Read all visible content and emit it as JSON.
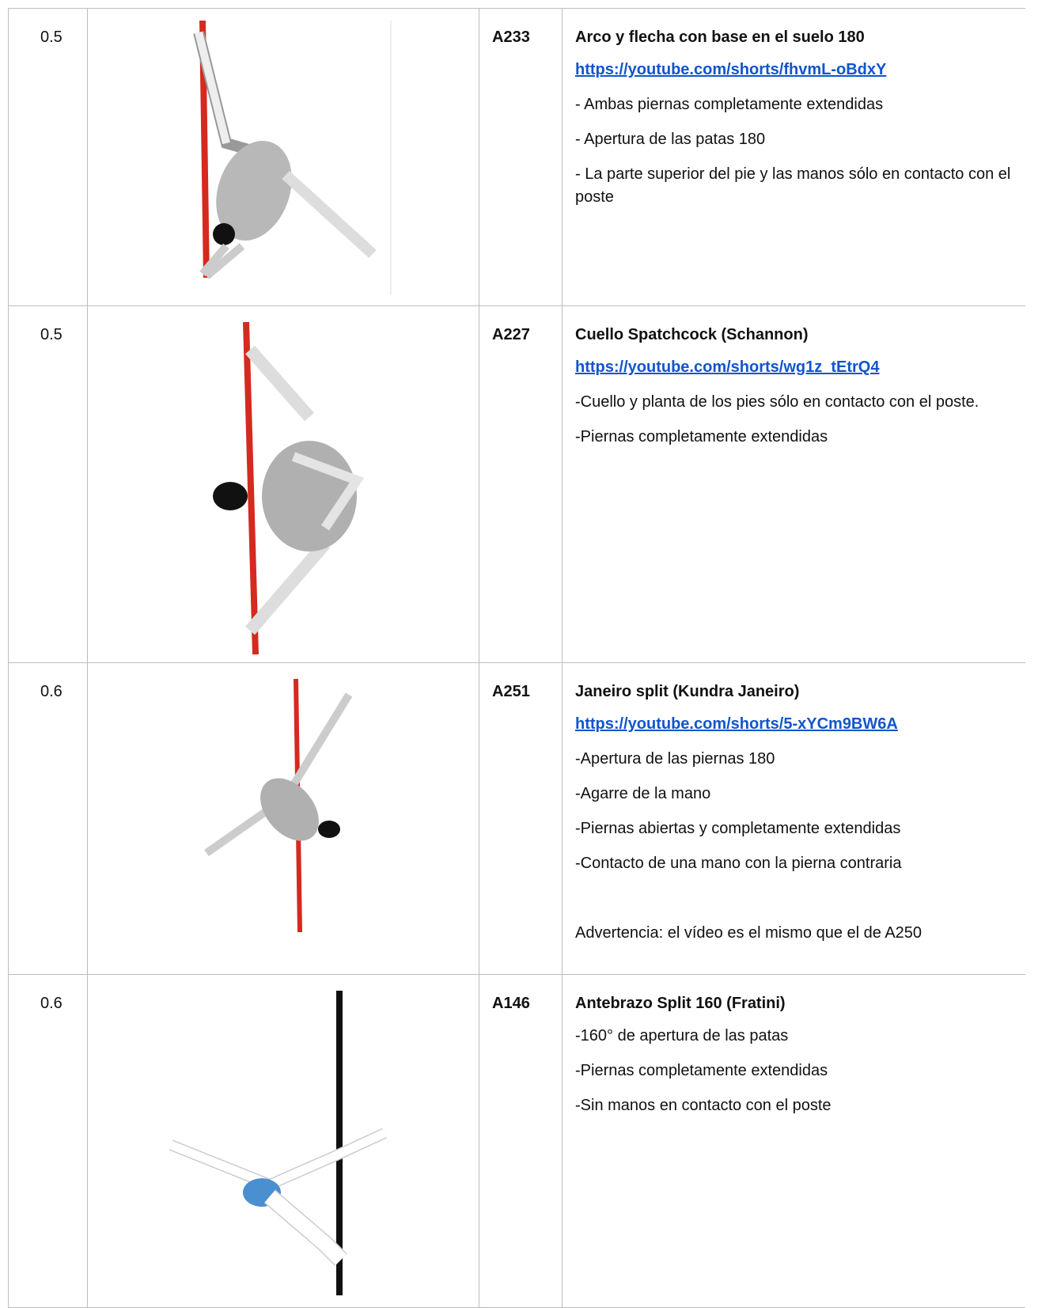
{
  "table": {
    "rows": [
      {
        "score": "0.5",
        "code": "A233",
        "title": "Arco y flecha con base en el suelo 180",
        "link": "https://youtube.com/shorts/fhvmL-oBdxY",
        "notes": [
          "- Ambas piernas completamente extendidas",
          "- Apertura de las patas 180",
          "- La parte superior del pie y las manos sólo en contacto con el poste"
        ]
      },
      {
        "score": "0.5",
        "code": "A227",
        "title": "Cuello Spatchcock (Schannon)",
        "link": "https://youtube.com/shorts/wg1z_tEtrQ4",
        "notes": [
          "-Cuello y planta de los pies sólo en contacto con el poste.",
          "-Piernas completamente extendidas"
        ]
      },
      {
        "score": "0.6",
        "code": "A251",
        "title": "Janeiro split (Kundra Janeiro)",
        "link": "https://youtube.com/shorts/5-xYCm9BW6A",
        "notes": [
          "-Apertura de las piernas 180",
          "-Agarre de la mano",
          "-Piernas abiertas y completamente extendidas",
          "-Contacto de una mano con la pierna contraria"
        ],
        "warning": "Advertencia: el vídeo es el mismo que el de A250"
      },
      {
        "score": "0.6",
        "code": "A146",
        "title": "Antebrazo Split 160 (Fratini)",
        "notes": [
          "-160° de apertura de las patas",
          "-Piernas completamente extendidas",
          "-Sin manos en contacto con el poste"
        ]
      }
    ]
  }
}
